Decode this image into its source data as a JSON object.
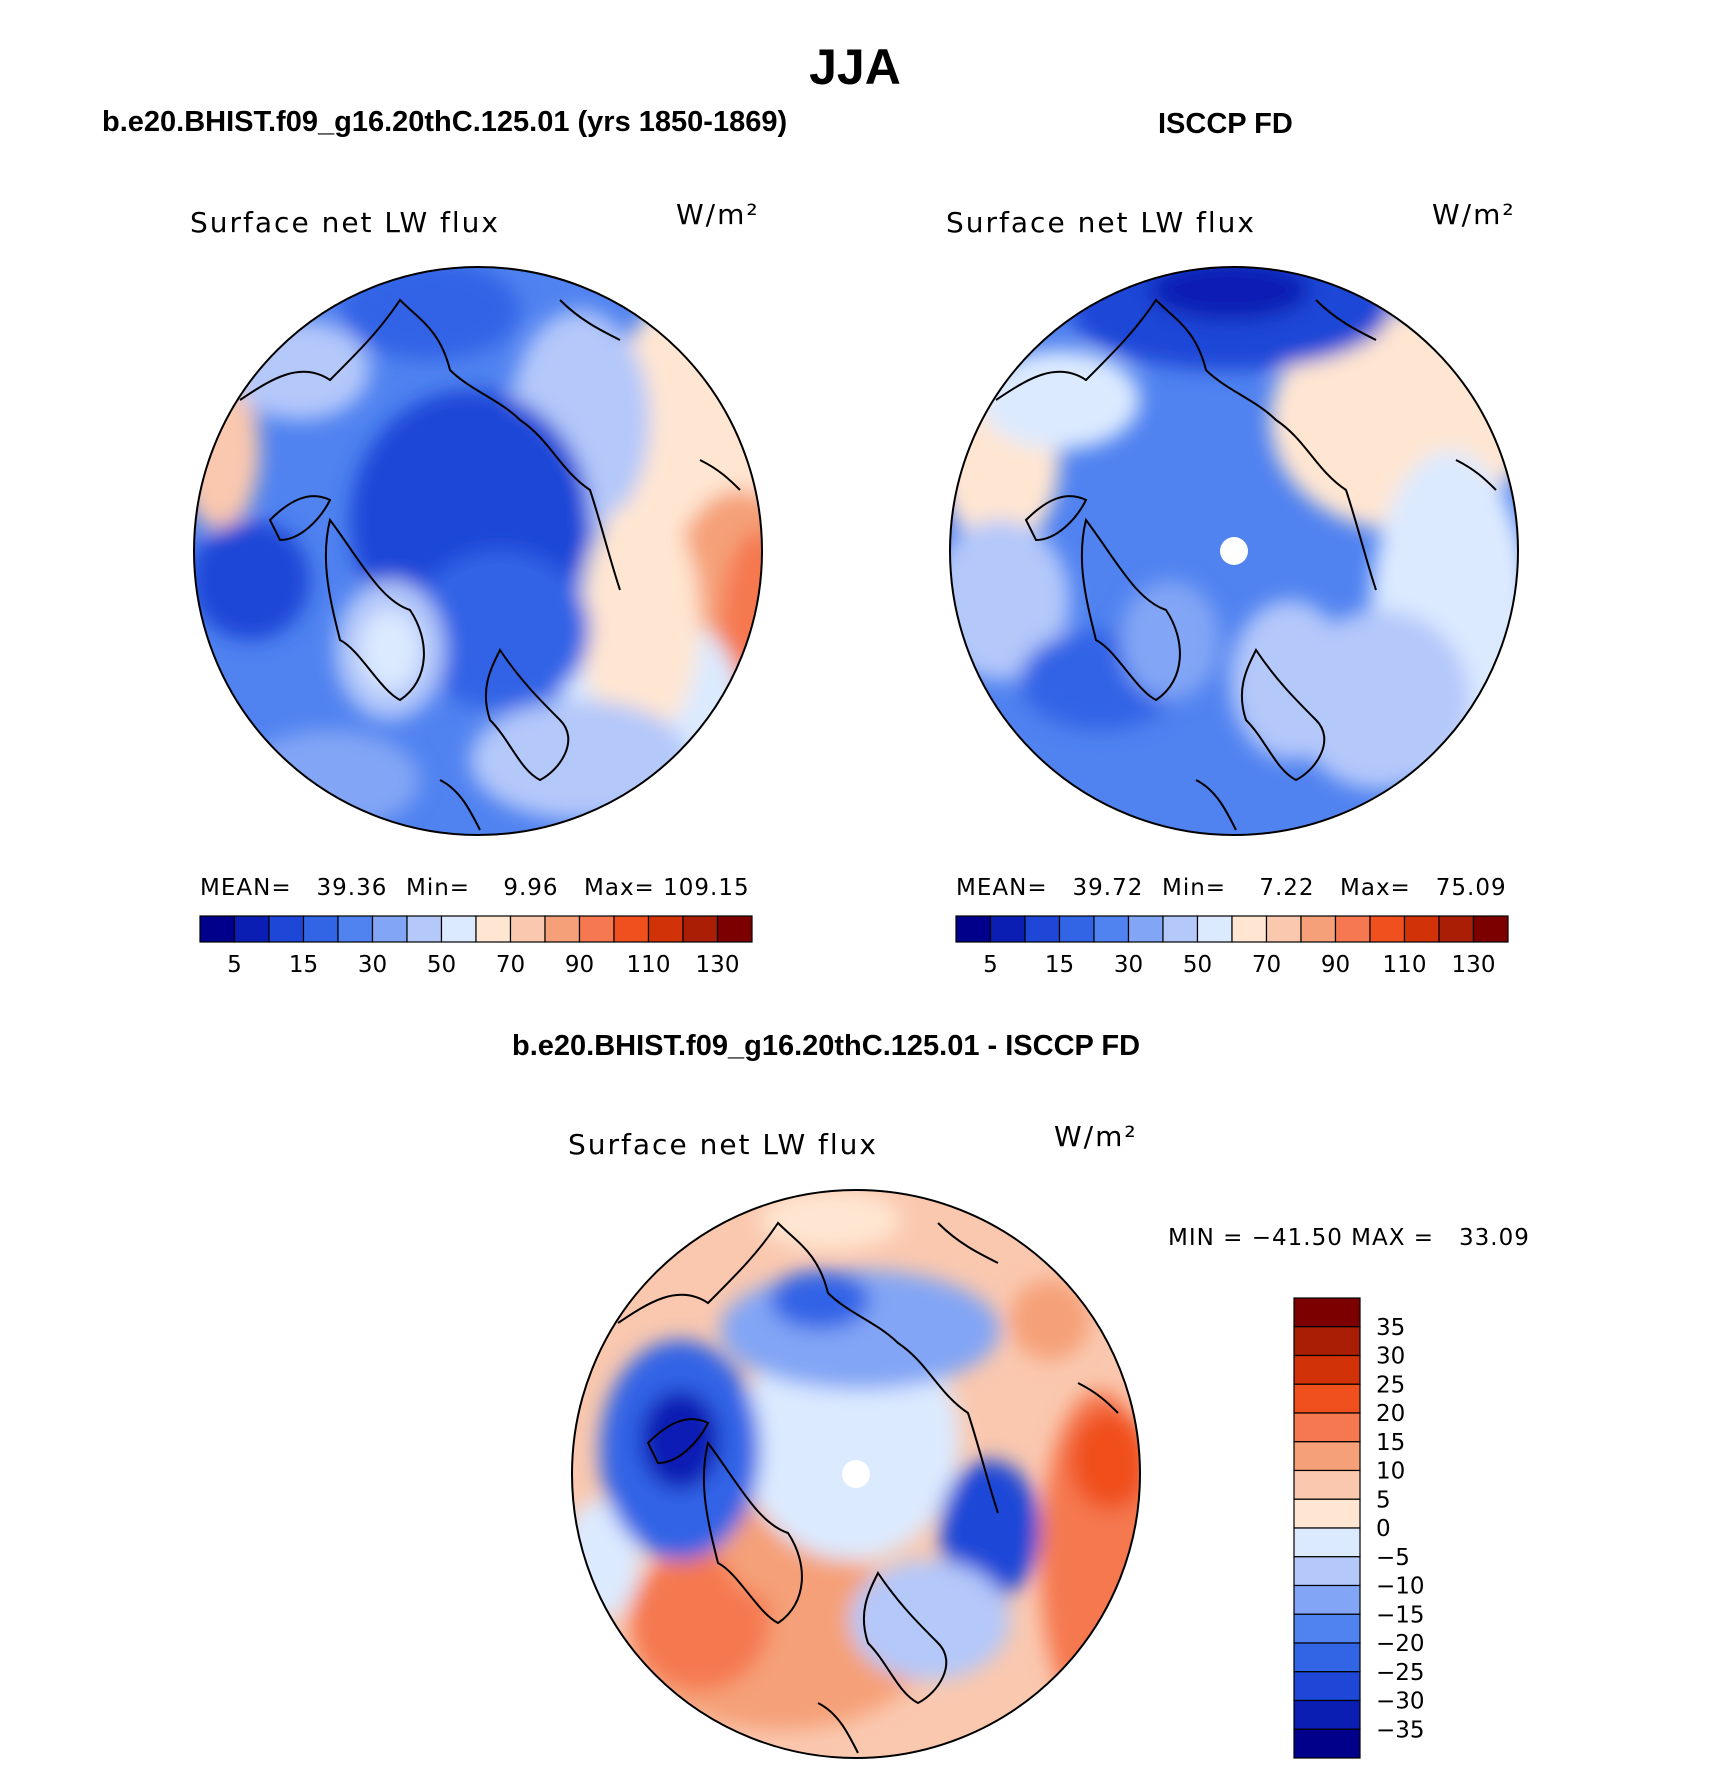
{
  "page": {
    "title": "JJA"
  },
  "panels": {
    "model": {
      "header": "b.e20.BHIST.f09_g16.20thC.125.01 (yrs 1850-1869)",
      "variable": "Surface net LW flux",
      "units": "W/m²",
      "stats": {
        "mean": "MEAN=   39.36",
        "min": "Min=    9.96",
        "max": "Max= 109.15"
      }
    },
    "obs": {
      "header": "ISCCP FD",
      "variable": "Surface net LW flux",
      "units": "W/m²",
      "stats": {
        "mean": "MEAN=   39.72",
        "min": "Min=    7.22",
        "max": "Max=   75.09"
      }
    },
    "diff": {
      "header": "b.e20.BHIST.f09_g16.20thC.125.01 - ISCCP FD",
      "variable": "Surface net LW flux",
      "units": "W/m²",
      "minmax": "MIN = −41.50 MAX =   33.09"
    }
  },
  "chart_data": [
    {
      "type": "heatmap",
      "projection": "north polar stereographic",
      "title": "Surface net LW flux",
      "subtitle": "b.e20.BHIST.f09_g16.20thC.125.01 (yrs 1850-1869)",
      "units": "W/m²",
      "mean": 39.36,
      "min": 9.96,
      "max": 109.15,
      "colorbar": {
        "orientation": "horizontal",
        "levels": [
          5,
          10,
          15,
          20,
          30,
          40,
          50,
          60,
          70,
          80,
          90,
          100,
          110,
          120,
          130
        ],
        "tick_labels": [
          "5",
          "15",
          "30",
          "50",
          "70",
          "90",
          "110",
          "130"
        ],
        "colors": [
          "#00008b",
          "#0a1eb4",
          "#1e46d7",
          "#3264e6",
          "#5082f0",
          "#82a5f5",
          "#b4c8fa",
          "#dceaff",
          "#ffe6d2",
          "#fac8af",
          "#f5a078",
          "#f57850",
          "#f0501e",
          "#d23208",
          "#aa1e05",
          "#7d0000"
        ]
      }
    },
    {
      "type": "heatmap",
      "projection": "north polar stereographic",
      "title": "Surface net LW flux",
      "subtitle": "ISCCP FD",
      "units": "W/m²",
      "mean": 39.72,
      "min": 7.22,
      "max": 75.09,
      "colorbar": {
        "orientation": "horizontal",
        "levels": [
          5,
          10,
          15,
          20,
          30,
          40,
          50,
          60,
          70,
          80,
          90,
          100,
          110,
          120,
          130
        ],
        "tick_labels": [
          "5",
          "15",
          "30",
          "50",
          "70",
          "90",
          "110",
          "130"
        ],
        "colors": [
          "#00008b",
          "#0a1eb4",
          "#1e46d7",
          "#3264e6",
          "#5082f0",
          "#82a5f5",
          "#b4c8fa",
          "#dceaff",
          "#ffe6d2",
          "#fac8af",
          "#f5a078",
          "#f57850",
          "#f0501e",
          "#d23208",
          "#aa1e05",
          "#7d0000"
        ]
      }
    },
    {
      "type": "heatmap",
      "projection": "north polar stereographic",
      "title": "Surface net LW flux",
      "subtitle": "b.e20.BHIST.f09_g16.20thC.125.01 - ISCCP FD",
      "units": "W/m²",
      "min": -41.5,
      "max": 33.09,
      "colorbar": {
        "orientation": "vertical",
        "levels": [
          35,
          30,
          25,
          20,
          15,
          10,
          5,
          0,
          -5,
          -10,
          -15,
          -20,
          -25,
          -30,
          -35
        ],
        "tick_labels": [
          "35",
          "30",
          "25",
          "20",
          "15",
          "10",
          "5",
          "0",
          "−5",
          "−10",
          "−15",
          "−20",
          "−25",
          "−30",
          "−35"
        ],
        "colors": [
          "#7d0000",
          "#aa1e05",
          "#d23208",
          "#f0501e",
          "#f57850",
          "#f5a078",
          "#fac8af",
          "#ffe6d2",
          "#dceaff",
          "#b4c8fa",
          "#82a5f5",
          "#5082f0",
          "#3264e6",
          "#1e46d7",
          "#0a1eb4",
          "#00008b"
        ]
      }
    }
  ]
}
